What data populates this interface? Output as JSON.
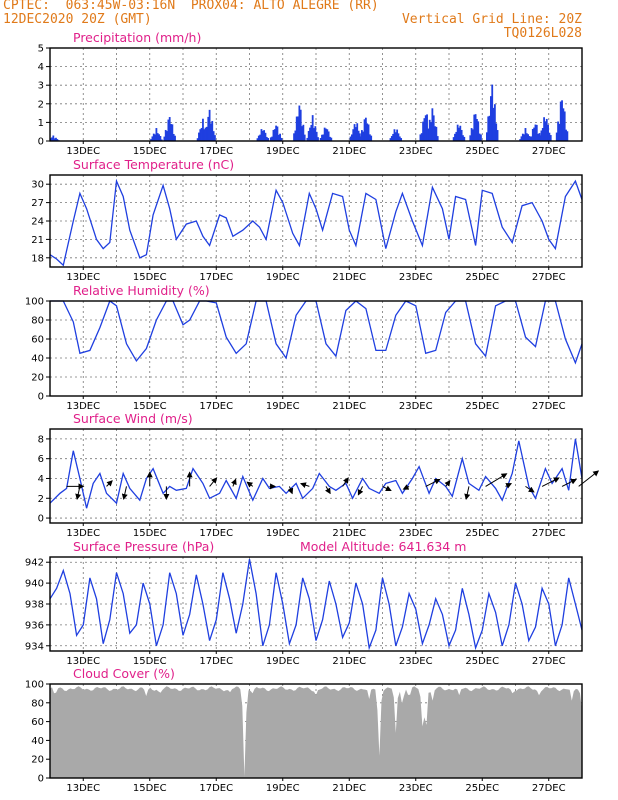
{
  "header": {
    "line1_left": "CPTEC:  063:45W-03:16N  PROX04: ALTO ALEGRE (RR)",
    "line2_left": "12DEC2020 20Z (GMT)",
    "line2_right": "Vertical Grid Line: 20Z",
    "line3_right": "TQ0126L028"
  },
  "x_tick_labels": [
    "13DEC",
    "15DEC",
    "17DEC",
    "19DEC",
    "21DEC",
    "23DEC",
    "25DEC",
    "27DEC"
  ],
  "colors": {
    "series": "#1f3fe0",
    "cloud": "#a9a9a9",
    "title": "#e0208a",
    "header": "#e07a1a"
  },
  "chart_data": [
    {
      "type": "bar",
      "title": "Precipitation (mm/h)",
      "ylim": [
        0,
        5
      ],
      "yticks": [
        0,
        1,
        2,
        3,
        4,
        5
      ],
      "x_unit": "days since 12DEC2020 20Z",
      "bursts": [
        {
          "center": 0.1,
          "peak": 0.3
        },
        {
          "center": 3.2,
          "peak": 0.7
        },
        {
          "center": 3.6,
          "peak": 1.5
        },
        {
          "center": 4.6,
          "peak": 1.2
        },
        {
          "center": 4.8,
          "peak": 1.8
        },
        {
          "center": 6.4,
          "peak": 0.8
        },
        {
          "center": 6.8,
          "peak": 1.0
        },
        {
          "center": 7.5,
          "peak": 2.2
        },
        {
          "center": 7.9,
          "peak": 1.4
        },
        {
          "center": 8.3,
          "peak": 0.9
        },
        {
          "center": 9.2,
          "peak": 1.2
        },
        {
          "center": 9.5,
          "peak": 1.5
        },
        {
          "center": 10.4,
          "peak": 0.8
        },
        {
          "center": 11.3,
          "peak": 1.8
        },
        {
          "center": 11.5,
          "peak": 1.9
        },
        {
          "center": 12.3,
          "peak": 1.1
        },
        {
          "center": 12.8,
          "peak": 1.8
        },
        {
          "center": 13.3,
          "peak": 3.3
        },
        {
          "center": 14.3,
          "peak": 0.7
        },
        {
          "center": 14.6,
          "peak": 1.1
        },
        {
          "center": 14.9,
          "peak": 1.6
        },
        {
          "center": 15.4,
          "peak": 2.7
        }
      ]
    },
    {
      "type": "line",
      "title": "Surface Temperature (nC)",
      "ylim": [
        16.5,
        31.5
      ],
      "yticks": [
        18,
        21,
        24,
        27,
        30
      ],
      "x": [
        0.0,
        0.2,
        0.4,
        0.7,
        0.9,
        1.1,
        1.4,
        1.6,
        1.8,
        2.0,
        2.2,
        2.4,
        2.7,
        2.9,
        3.1,
        3.4,
        3.6,
        3.8,
        4.1,
        4.4,
        4.6,
        4.8,
        5.1,
        5.3,
        5.5,
        5.8,
        6.1,
        6.3,
        6.5,
        6.8,
        7.0,
        7.3,
        7.5,
        7.8,
        8.0,
        8.2,
        8.5,
        8.8,
        9.0,
        9.2,
        9.5,
        9.8,
        10.1,
        10.4,
        10.6,
        10.9,
        11.2,
        11.5,
        11.8,
        12.0,
        12.2,
        12.5,
        12.8,
        13.0,
        13.3,
        13.6,
        13.9,
        14.2,
        14.5,
        14.8,
        15.0,
        15.2,
        15.5,
        15.8,
        16.0
      ],
      "y": [
        18.5,
        17.8,
        16.8,
        24.0,
        28.5,
        26.0,
        21.0,
        19.5,
        20.5,
        30.5,
        28.0,
        22.5,
        18.0,
        18.5,
        25.0,
        29.8,
        26.0,
        21.0,
        23.5,
        24.0,
        21.5,
        20.0,
        25.0,
        24.5,
        21.5,
        22.5,
        24.0,
        23.0,
        21.0,
        29.0,
        27.0,
        22.0,
        20.0,
        28.5,
        26.0,
        22.5,
        28.5,
        28.0,
        22.5,
        20.0,
        28.5,
        27.5,
        19.5,
        25.5,
        28.5,
        24.0,
        20.0,
        29.5,
        26.0,
        21.0,
        28.0,
        27.5,
        20.0,
        29.0,
        28.5,
        23.0,
        20.5,
        26.5,
        27.0,
        24.0,
        21.0,
        19.5,
        28.0,
        30.5,
        27.5
      ]
    },
    {
      "type": "line",
      "title": "Relative Humidity (%)",
      "ylim": [
        0,
        100
      ],
      "yticks": [
        0,
        20,
        40,
        60,
        80,
        100
      ],
      "x": [
        0.0,
        0.2,
        0.4,
        0.7,
        0.9,
        1.2,
        1.5,
        1.8,
        2.0,
        2.3,
        2.6,
        2.9,
        3.2,
        3.5,
        3.7,
        4.0,
        4.2,
        4.5,
        4.7,
        5.0,
        5.3,
        5.6,
        5.9,
        6.2,
        6.5,
        6.8,
        7.1,
        7.4,
        7.7,
        8.0,
        8.3,
        8.6,
        8.9,
        9.2,
        9.5,
        9.8,
        10.1,
        10.4,
        10.7,
        11.0,
        11.3,
        11.6,
        11.9,
        12.2,
        12.5,
        12.8,
        13.1,
        13.4,
        13.7,
        14.0,
        14.3,
        14.6,
        14.9,
        15.2,
        15.5,
        15.8,
        16.0
      ],
      "y": [
        100,
        100,
        100,
        78,
        45,
        48,
        72,
        100,
        95,
        55,
        37,
        50,
        80,
        100,
        100,
        75,
        80,
        100,
        100,
        98,
        62,
        45,
        55,
        100,
        100,
        55,
        40,
        85,
        100,
        100,
        55,
        42,
        90,
        100,
        92,
        48,
        48,
        85,
        100,
        95,
        45,
        48,
        88,
        100,
        100,
        55,
        42,
        95,
        100,
        100,
        62,
        52,
        100,
        100,
        60,
        35,
        55
      ]
    },
    {
      "type": "line",
      "title": "Surface Wind (m/s)",
      "ylim": [
        -0.5,
        9
      ],
      "yticks": [
        0,
        2,
        4,
        6,
        8
      ],
      "x": [
        0.0,
        0.3,
        0.5,
        0.7,
        0.9,
        1.1,
        1.3,
        1.5,
        1.7,
        2.0,
        2.2,
        2.4,
        2.7,
        2.9,
        3.1,
        3.4,
        3.6,
        3.8,
        4.1,
        4.3,
        4.6,
        4.8,
        5.1,
        5.3,
        5.6,
        5.8,
        6.1,
        6.4,
        6.6,
        6.9,
        7.1,
        7.4,
        7.6,
        7.9,
        8.1,
        8.4,
        8.6,
        8.9,
        9.1,
        9.4,
        9.6,
        9.9,
        10.1,
        10.4,
        10.6,
        10.9,
        11.1,
        11.4,
        11.6,
        11.9,
        12.1,
        12.4,
        12.6,
        12.9,
        13.1,
        13.4,
        13.6,
        13.9,
        14.1,
        14.4,
        14.6,
        14.9,
        15.1,
        15.4,
        15.6,
        15.8,
        16.0
      ],
      "y": [
        1.5,
        2.5,
        3.0,
        6.8,
        4.0,
        1.0,
        3.5,
        4.5,
        2.5,
        1.5,
        4.5,
        3.0,
        1.8,
        4.0,
        5.0,
        2.5,
        3.2,
        2.8,
        3.0,
        5.0,
        3.5,
        2.0,
        2.5,
        3.8,
        2.0,
        4.2,
        1.8,
        4.0,
        3.0,
        3.2,
        2.5,
        3.5,
        2.0,
        3.0,
        4.5,
        3.2,
        2.8,
        3.5,
        2.0,
        4.0,
        3.0,
        2.5,
        3.5,
        3.8,
        2.5,
        4.0,
        5.2,
        2.5,
        4.0,
        3.2,
        2.2,
        6.0,
        3.5,
        2.8,
        4.2,
        3.0,
        1.8,
        4.5,
        7.8,
        3.2,
        2.0,
        5.0,
        3.5,
        5.0,
        2.8,
        8.0,
        4.0
      ],
      "arrows": [
        {
          "x": 0.5,
          "u": 1.2,
          "v": 0.0
        },
        {
          "x": 0.9,
          "u": -0.2,
          "v": -0.9
        },
        {
          "x": 1.7,
          "u": 0.4,
          "v": 0.4
        },
        {
          "x": 2.3,
          "u": -0.2,
          "v": -0.9
        },
        {
          "x": 3.0,
          "u": 0.0,
          "v": 1.0
        },
        {
          "x": 3.5,
          "u": 0.0,
          "v": -0.9
        },
        {
          "x": 4.2,
          "u": 0.0,
          "v": 1.0
        },
        {
          "x": 4.8,
          "u": 0.5,
          "v": 0.6
        },
        {
          "x": 5.5,
          "u": 0.2,
          "v": 0.5
        },
        {
          "x": 6.1,
          "u": -0.4,
          "v": 0.3
        },
        {
          "x": 6.6,
          "u": 0.4,
          "v": 0.0
        },
        {
          "x": 7.2,
          "u": 0.2,
          "v": -0.5
        },
        {
          "x": 7.8,
          "u": -0.6,
          "v": 0.2
        },
        {
          "x": 8.3,
          "u": 0.3,
          "v": -0.5
        },
        {
          "x": 8.8,
          "u": 0.4,
          "v": 0.6
        },
        {
          "x": 9.4,
          "u": -0.3,
          "v": -0.6
        },
        {
          "x": 10.0,
          "u": 0.6,
          "v": -0.3
        },
        {
          "x": 10.8,
          "u": -0.4,
          "v": -0.2
        },
        {
          "x": 11.3,
          "u": 1.0,
          "v": 0.5
        },
        {
          "x": 11.9,
          "u": 0.3,
          "v": 0.4
        },
        {
          "x": 12.6,
          "u": -0.2,
          "v": -0.9
        },
        {
          "x": 13.1,
          "u": 1.5,
          "v": 0.9
        },
        {
          "x": 13.7,
          "u": 0.4,
          "v": 0.2
        },
        {
          "x": 14.3,
          "u": 0.6,
          "v": -0.4
        },
        {
          "x": 14.8,
          "u": 1.2,
          "v": 0.6
        },
        {
          "x": 15.4,
          "u": 1.0,
          "v": 0.5
        },
        {
          "x": 15.9,
          "u": 1.4,
          "v": 1.1
        }
      ]
    },
    {
      "type": "line",
      "title": "Surface Pressure (hPa)",
      "annotation": "Model Altitude: 641.634 m",
      "ylim": [
        933.5,
        942.5
      ],
      "yticks": [
        934,
        936,
        938,
        940,
        942
      ],
      "x": [
        0.0,
        0.2,
        0.4,
        0.6,
        0.8,
        1.0,
        1.2,
        1.4,
        1.6,
        1.8,
        2.0,
        2.2,
        2.4,
        2.6,
        2.8,
        3.0,
        3.2,
        3.4,
        3.6,
        3.8,
        4.0,
        4.2,
        4.4,
        4.6,
        4.8,
        5.0,
        5.2,
        5.4,
        5.6,
        5.8,
        6.0,
        6.2,
        6.4,
        6.6,
        6.8,
        7.0,
        7.2,
        7.4,
        7.6,
        7.8,
        8.0,
        8.2,
        8.4,
        8.6,
        8.8,
        9.0,
        9.2,
        9.4,
        9.6,
        9.8,
        10.0,
        10.2,
        10.4,
        10.6,
        10.8,
        11.0,
        11.2,
        11.4,
        11.6,
        11.8,
        12.0,
        12.2,
        12.4,
        12.6,
        12.8,
        13.0,
        13.2,
        13.4,
        13.6,
        13.8,
        14.0,
        14.2,
        14.4,
        14.6,
        14.8,
        15.0,
        15.2,
        15.4,
        15.6,
        15.8,
        16.0
      ],
      "y": [
        938.5,
        939.5,
        941.2,
        939.0,
        935.0,
        936.0,
        940.5,
        938.5,
        934.2,
        936.5,
        941.0,
        939.0,
        935.2,
        936.0,
        940.0,
        938.0,
        934.0,
        936.0,
        941.0,
        939.0,
        935.0,
        937.0,
        940.8,
        938.0,
        934.5,
        936.5,
        941.0,
        938.5,
        935.2,
        938.0,
        942.3,
        939.0,
        934.0,
        936.0,
        941.0,
        938.0,
        934.2,
        936.0,
        940.5,
        938.5,
        934.5,
        936.5,
        940.2,
        938.0,
        934.8,
        936.2,
        940.0,
        938.0,
        933.8,
        935.5,
        940.5,
        938.0,
        934.0,
        935.8,
        939.0,
        937.5,
        934.2,
        936.0,
        938.5,
        937.0,
        934.0,
        935.5,
        939.5,
        937.0,
        933.8,
        935.5,
        939.0,
        937.2,
        934.0,
        936.0,
        940.0,
        938.0,
        934.5,
        935.8,
        939.5,
        938.0,
        934.0,
        936.0,
        940.5,
        938.0,
        935.5
      ]
    },
    {
      "type": "area",
      "title": "Cloud Cover (%)",
      "ylim": [
        0,
        100
      ],
      "yticks": [
        0,
        20,
        40,
        60,
        80,
        100
      ],
      "baseline": 95,
      "dips": [
        {
          "x": 0.15,
          "value": 88
        },
        {
          "x": 2.9,
          "value": 87
        },
        {
          "x": 3.3,
          "value": 90
        },
        {
          "x": 5.4,
          "value": 91
        },
        {
          "x": 5.85,
          "value": 1
        },
        {
          "x": 6.1,
          "value": 90
        },
        {
          "x": 8.0,
          "value": 88
        },
        {
          "x": 9.6,
          "value": 84
        },
        {
          "x": 9.9,
          "value": 22
        },
        {
          "x": 10.4,
          "value": 48
        },
        {
          "x": 10.6,
          "value": 78
        },
        {
          "x": 10.8,
          "value": 86
        },
        {
          "x": 11.2,
          "value": 55
        },
        {
          "x": 11.3,
          "value": 48
        },
        {
          "x": 11.5,
          "value": 82
        },
        {
          "x": 12.3,
          "value": 88
        },
        {
          "x": 13.9,
          "value": 90
        },
        {
          "x": 14.7,
          "value": 88
        },
        {
          "x": 15.7,
          "value": 82
        },
        {
          "x": 16.0,
          "value": 72
        }
      ]
    }
  ]
}
